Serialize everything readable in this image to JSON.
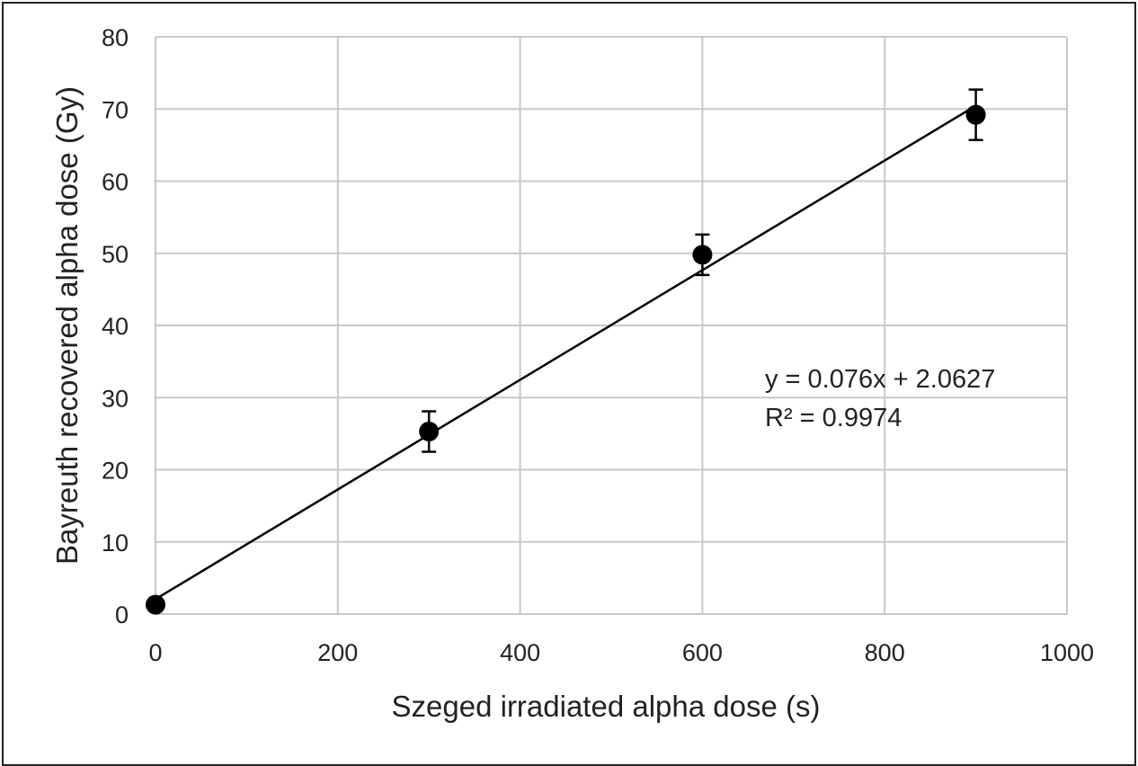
{
  "chart_data": {
    "type": "scatter",
    "xlabel": "Szeged irradiated alpha dose (s)",
    "ylabel": "Bayreuth recovered alpha dose (Gy)",
    "xlim": [
      0,
      1000
    ],
    "ylim": [
      0,
      80
    ],
    "xticks": [
      0,
      200,
      400,
      600,
      800,
      1000
    ],
    "yticks": [
      0,
      10,
      20,
      30,
      40,
      50,
      60,
      70,
      80
    ],
    "grid": true,
    "points": [
      {
        "x": 0,
        "y": 1.3,
        "err": 0
      },
      {
        "x": 300,
        "y": 25.3,
        "err": 2.8
      },
      {
        "x": 600,
        "y": 49.8,
        "err": 2.8
      },
      {
        "x": 900,
        "y": 69.2,
        "err": 3.5
      }
    ],
    "trendline": {
      "slope": 0.076,
      "intercept": 2.0627,
      "x_range": [
        0,
        900
      ]
    },
    "annotations": {
      "equation": "y = 0.076x + 2.0627",
      "r2": "R² = 0.9974"
    },
    "colors": {
      "grid": "#c8c8c8",
      "marker": "#000000",
      "line": "#000000",
      "text": "#222222"
    }
  }
}
